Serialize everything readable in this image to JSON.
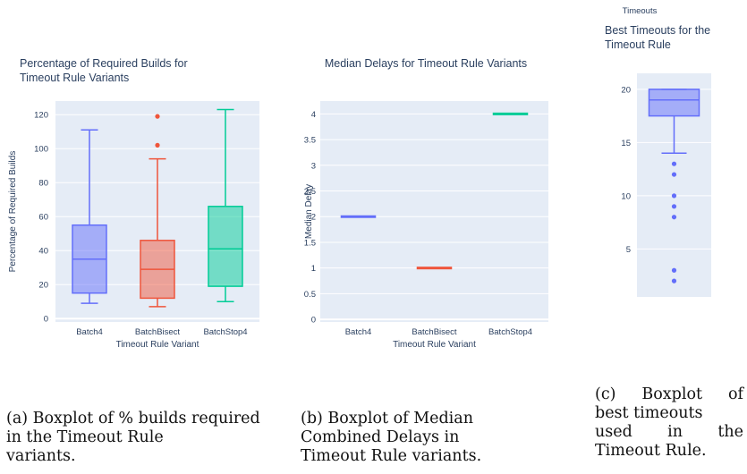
{
  "captions": {
    "a": [
      "(a) Boxplot of % builds required",
      "in the Timeout Rule",
      "variants."
    ],
    "b": [
      "(b) Boxplot of Median",
      "Combined Delays in",
      "Timeout Rule variants."
    ],
    "c": [
      "(c)",
      "Boxplot",
      "of",
      "best timeouts",
      "used",
      "in",
      "the",
      "Timeout Rule."
    ]
  },
  "chart_data": [
    {
      "type": "box",
      "title_lines": [
        "Percentage of Required Builds for",
        " Timeout Rule Variants"
      ],
      "xlabel": "Timeout Rule Variant",
      "ylabel": "Percentage of Required Builds",
      "categories": [
        "Batch4",
        "BatchBisect",
        "BatchStop4"
      ],
      "yticks": [
        0,
        20,
        40,
        60,
        80,
        100,
        120
      ],
      "ytick_labels": [
        "0",
        "20",
        "40",
        "60",
        "80",
        "100",
        "120"
      ],
      "ylim": [
        -2,
        128
      ],
      "grid": true,
      "series": [
        {
          "name": "Batch4",
          "color": "#636efa",
          "min": 9,
          "q1": 15,
          "median": 35,
          "q3": 55,
          "max": 111,
          "outliers": []
        },
        {
          "name": "BatchBisect",
          "color": "#ef553b",
          "min": 7,
          "q1": 12,
          "median": 29,
          "q3": 46,
          "max": 94,
          "outliers": [
            102,
            119
          ]
        },
        {
          "name": "BatchStop4",
          "color": "#00cc96",
          "min": 10,
          "q1": 19,
          "median": 41,
          "q3": 66,
          "max": 123,
          "outliers": []
        }
      ]
    },
    {
      "type": "box",
      "title_lines": [
        "Median Delays for Timeout Rule Variants"
      ],
      "xlabel": "Timeout Rule Variant",
      "ylabel": "Median Delay",
      "categories": [
        "Batch4",
        "BatchBisect",
        "BatchStop4"
      ],
      "yticks": [
        0,
        0.5,
        1,
        1.5,
        2,
        2.5,
        3,
        3.5,
        4
      ],
      "ytick_labels": [
        "0",
        "0.5",
        "1",
        "1.5",
        "2",
        "2.5",
        "3",
        "3.5",
        "4"
      ],
      "ylim": [
        -0.05,
        4.25
      ],
      "grid": true,
      "series": [
        {
          "name": "Batch4",
          "color": "#636efa",
          "min": 2,
          "q1": 2,
          "median": 2,
          "q3": 2,
          "max": 2,
          "outliers": []
        },
        {
          "name": "BatchBisect",
          "color": "#ef553b",
          "min": 1,
          "q1": 1,
          "median": 1,
          "q3": 1,
          "max": 1,
          "outliers": []
        },
        {
          "name": "BatchStop4",
          "color": "#00cc96",
          "min": 4,
          "q1": 4,
          "median": 4,
          "q3": 4,
          "max": 4,
          "outliers": []
        }
      ]
    },
    {
      "type": "box",
      "top_label": "Timeouts",
      "title_lines": [
        "Best Timeouts for the",
        "Timeout Rule"
      ],
      "xlabel": "",
      "ylabel": "",
      "categories": [
        ""
      ],
      "yticks": [
        5,
        10,
        15,
        20
      ],
      "ytick_labels": [
        "5",
        "10",
        "15",
        "20"
      ],
      "ylim": [
        0.5,
        21.5
      ],
      "grid": true,
      "series": [
        {
          "name": "",
          "color": "#636efa",
          "min": 14,
          "q1": 17.5,
          "median": 19,
          "q3": 20,
          "max": 20,
          "outliers": [
            13,
            12,
            10,
            9,
            8,
            3,
            2
          ]
        }
      ]
    }
  ]
}
